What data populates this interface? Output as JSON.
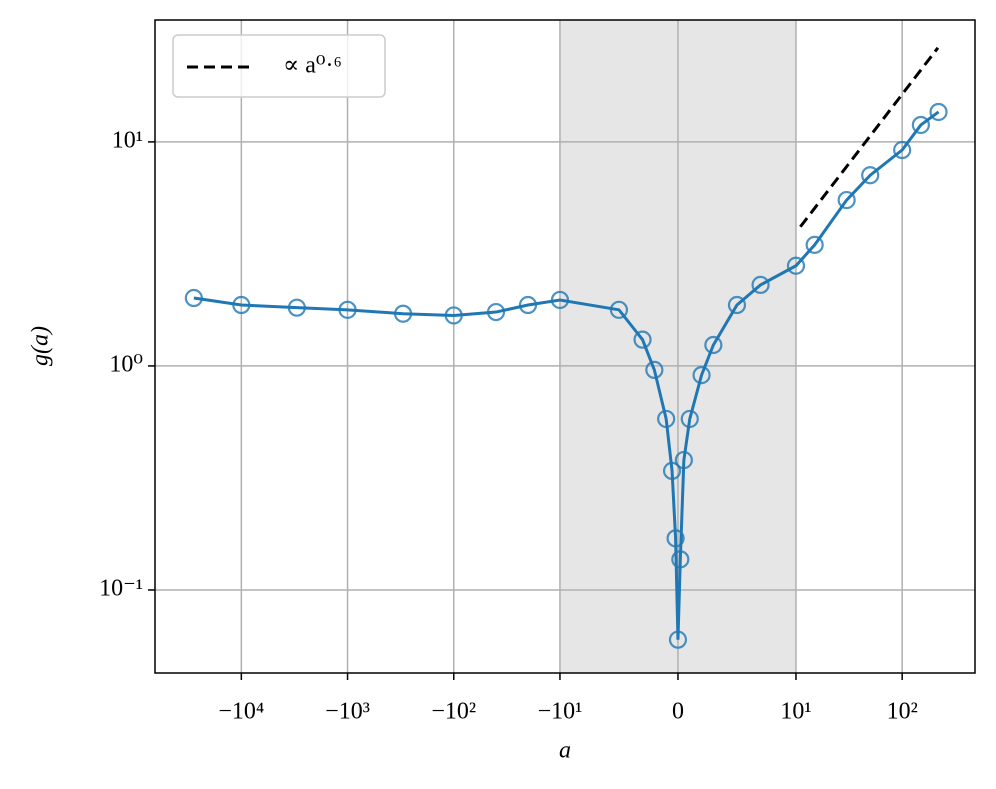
{
  "chart_data": {
    "type": "line",
    "x_label": "a",
    "y_label": "g(a)",
    "xscale": "symlog",
    "linthresh": 10,
    "yscale": "log",
    "grid": true,
    "legend_position": "upper left",
    "shaded_span": [
      -10,
      10
    ],
    "xlim": [
      -65000,
      485
    ],
    "ylim": [
      0.0426,
      35
    ],
    "xticks": [
      {
        "value": -10000,
        "label": "−10⁴"
      },
      {
        "value": -1000,
        "label": "−10³"
      },
      {
        "value": -100,
        "label": "−10²"
      },
      {
        "value": -10,
        "label": "−10¹"
      },
      0,
      {
        "value": 10,
        "label": "10¹"
      },
      {
        "value": 100,
        "label": "10²"
      }
    ],
    "yticks": [
      {
        "value": 0.1,
        "label": "10⁻¹"
      },
      {
        "value": 1,
        "label": "10⁰"
      },
      {
        "value": 10,
        "label": "10¹"
      }
    ],
    "series": [
      {
        "color": "#1f77b4",
        "markers": true,
        "x": [
          -28000,
          -10000,
          -3000,
          -1000,
          -300,
          -100,
          -40,
          -20,
          -10,
          -5,
          -3,
          -2,
          -1,
          -0.5,
          -0.2,
          0,
          0.2,
          0.5,
          1,
          2,
          3,
          5,
          7,
          10,
          15,
          30,
          50,
          100,
          150,
          220
        ],
        "values": [
          2.01,
          1.87,
          1.82,
          1.78,
          1.71,
          1.68,
          1.74,
          1.87,
          1.97,
          1.78,
          1.31,
          0.96,
          0.58,
          0.34,
          0.17,
          0.06,
          0.137,
          0.38,
          0.58,
          0.91,
          1.24,
          1.87,
          2.3,
          2.8,
          3.47,
          5.5,
          7.1,
          9.2,
          11.9,
          13.6
        ]
      },
      {
        "name": "∝ a⁰·⁶",
        "color": "#000000",
        "dashed": true,
        "x": [
          11,
          217
        ],
        "values": [
          4.18,
          26.3
        ]
      }
    ]
  }
}
